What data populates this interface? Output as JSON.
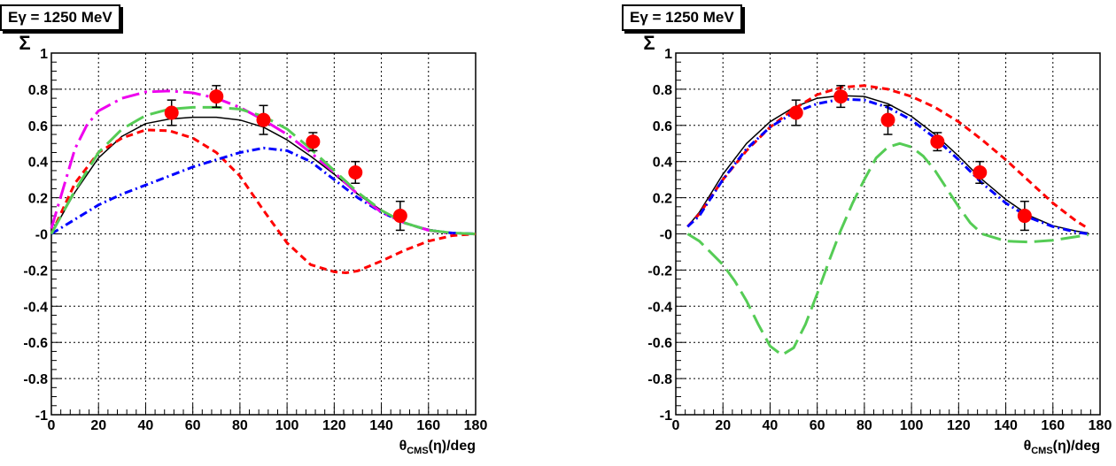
{
  "chart_data": [
    {
      "type": "line",
      "title": "Eγ = 1250 MeV",
      "ylabel": "Σ",
      "xlabel": "θ_CMS(η)/deg",
      "xlabel_parts": {
        "main": "θ",
        "sub": "CMS",
        "rest": "(η)/deg"
      },
      "xlim": [
        0,
        180
      ],
      "ylim": [
        -1,
        1
      ],
      "xticks": [
        0,
        20,
        40,
        60,
        80,
        100,
        120,
        140,
        160,
        180
      ],
      "yticks": [
        -1,
        -0.8,
        -0.6,
        -0.4,
        -0.2,
        0,
        0.2,
        0.4,
        0.6,
        0.8,
        1
      ],
      "ytick_labels": [
        "-1",
        "-0.8",
        "-0.6",
        "-0.4",
        "-0.2",
        "-0",
        "0.2",
        "0.4",
        "0.6",
        "0.8",
        "1"
      ],
      "grid": true,
      "data_points": [
        {
          "x": 51,
          "y": 0.67,
          "err": 0.07
        },
        {
          "x": 70,
          "y": 0.76,
          "err": 0.06
        },
        {
          "x": 90,
          "y": 0.63,
          "err": 0.08
        },
        {
          "x": 111,
          "y": 0.51,
          "err": 0.05
        },
        {
          "x": 129,
          "y": 0.34,
          "err": 0.06
        },
        {
          "x": 148,
          "y": 0.1,
          "err": 0.08
        }
      ],
      "series": [
        {
          "color": "#000000",
          "style": "solid",
          "x": [
            0,
            10,
            20,
            30,
            40,
            50,
            60,
            70,
            80,
            90,
            100,
            110,
            120,
            130,
            140,
            150,
            160,
            170,
            180
          ],
          "y": [
            0,
            0.23,
            0.42,
            0.54,
            0.61,
            0.635,
            0.645,
            0.645,
            0.63,
            0.59,
            0.52,
            0.43,
            0.33,
            0.22,
            0.13,
            0.06,
            0.025,
            0.005,
            0
          ]
        },
        {
          "color": "#ff0000",
          "style": "dashed",
          "x": [
            0,
            10,
            20,
            30,
            40,
            50,
            60,
            70,
            80,
            90,
            100,
            110,
            120,
            125,
            130,
            140,
            150,
            160,
            170,
            180
          ],
          "y": [
            0,
            0.28,
            0.45,
            0.53,
            0.575,
            0.57,
            0.53,
            0.45,
            0.32,
            0.13,
            -0.05,
            -0.17,
            -0.21,
            -0.215,
            -0.205,
            -0.15,
            -0.09,
            -0.04,
            -0.01,
            0
          ]
        },
        {
          "color": "#0000ff",
          "style": "dashdot",
          "x": [
            0,
            10,
            20,
            30,
            40,
            50,
            60,
            70,
            80,
            90,
            100,
            110,
            120,
            130,
            140,
            150,
            160,
            170,
            180
          ],
          "y": [
            0,
            0.08,
            0.16,
            0.22,
            0.27,
            0.32,
            0.37,
            0.41,
            0.45,
            0.475,
            0.46,
            0.4,
            0.3,
            0.2,
            0.12,
            0.06,
            0.02,
            0.005,
            0
          ]
        },
        {
          "color": "#ee00ee",
          "style": "longdashdot",
          "x": [
            0,
            5,
            10,
            15,
            20,
            30,
            40,
            50,
            60,
            70,
            80,
            90,
            100,
            110,
            120,
            130,
            140,
            150,
            160,
            170
          ],
          "y": [
            0.03,
            0.25,
            0.47,
            0.6,
            0.68,
            0.75,
            0.785,
            0.79,
            0.78,
            0.75,
            0.7,
            0.63,
            0.55,
            0.45,
            0.34,
            0.22,
            0.12,
            0.06,
            0.02,
            0
          ]
        },
        {
          "color": "#55cc55",
          "style": "longdash",
          "x": [
            0,
            10,
            20,
            30,
            40,
            50,
            60,
            70,
            80,
            90,
            100,
            110,
            120,
            130,
            140,
            150,
            160,
            170,
            180
          ],
          "y": [
            0,
            0.24,
            0.45,
            0.58,
            0.655,
            0.69,
            0.7,
            0.7,
            0.69,
            0.65,
            0.58,
            0.47,
            0.35,
            0.23,
            0.13,
            0.06,
            0.02,
            0.005,
            0
          ]
        }
      ]
    },
    {
      "type": "line",
      "title": "Eγ = 1250 MeV",
      "ylabel": "Σ",
      "xlabel": "θ_CMS(η)/deg",
      "xlabel_parts": {
        "main": "θ",
        "sub": "CMS",
        "rest": "(η)/deg"
      },
      "xlim": [
        0,
        180
      ],
      "ylim": [
        -1,
        1
      ],
      "xticks": [
        0,
        20,
        40,
        60,
        80,
        100,
        120,
        140,
        160,
        180
      ],
      "yticks": [
        -1,
        -0.8,
        -0.6,
        -0.4,
        -0.2,
        0,
        0.2,
        0.4,
        0.6,
        0.8,
        1
      ],
      "ytick_labels": [
        "-1",
        "-0.8",
        "-0.6",
        "-0.4",
        "-0.2",
        "-0",
        "0.2",
        "0.4",
        "0.6",
        "0.8",
        "1"
      ],
      "grid": true,
      "data_points": [
        {
          "x": 51,
          "y": 0.67,
          "err": 0.07
        },
        {
          "x": 70,
          "y": 0.76,
          "err": 0.06
        },
        {
          "x": 90,
          "y": 0.63,
          "err": 0.08
        },
        {
          "x": 111,
          "y": 0.51,
          "err": 0.05
        },
        {
          "x": 129,
          "y": 0.34,
          "err": 0.06
        },
        {
          "x": 148,
          "y": 0.1,
          "err": 0.08
        }
      ],
      "series": [
        {
          "color": "#000000",
          "style": "solid",
          "x": [
            5,
            10,
            20,
            30,
            40,
            50,
            60,
            70,
            80,
            90,
            100,
            110,
            120,
            130,
            140,
            150,
            160,
            170,
            175
          ],
          "y": [
            0.04,
            0.12,
            0.33,
            0.5,
            0.62,
            0.7,
            0.75,
            0.765,
            0.76,
            0.72,
            0.65,
            0.55,
            0.43,
            0.3,
            0.19,
            0.1,
            0.045,
            0.015,
            0.005
          ]
        },
        {
          "color": "#ff0000",
          "style": "dashed",
          "x": [
            5,
            10,
            20,
            30,
            40,
            50,
            60,
            70,
            80,
            90,
            100,
            110,
            120,
            130,
            140,
            150,
            160,
            170,
            175
          ],
          "y": [
            0.04,
            0.11,
            0.3,
            0.46,
            0.59,
            0.69,
            0.77,
            0.81,
            0.82,
            0.8,
            0.76,
            0.7,
            0.62,
            0.52,
            0.41,
            0.29,
            0.17,
            0.07,
            0.03
          ]
        },
        {
          "color": "#0000ff",
          "style": "dashdot",
          "x": [
            5,
            10,
            20,
            30,
            40,
            50,
            60,
            70,
            80,
            90,
            100,
            110,
            120,
            130,
            140,
            150,
            160,
            170,
            175
          ],
          "y": [
            0.04,
            0.1,
            0.3,
            0.47,
            0.59,
            0.67,
            0.72,
            0.745,
            0.74,
            0.7,
            0.63,
            0.53,
            0.41,
            0.28,
            0.17,
            0.09,
            0.04,
            0.01,
            0
          ]
        },
        {
          "color": "#55cc55",
          "style": "longdash",
          "x": [
            5,
            10,
            20,
            25,
            30,
            35,
            40,
            45,
            50,
            55,
            60,
            65,
            70,
            75,
            80,
            85,
            90,
            95,
            100,
            105,
            110,
            115,
            120,
            125,
            130,
            140,
            150,
            160,
            170,
            175
          ],
          "y": [
            0,
            -0.04,
            -0.17,
            -0.26,
            -0.37,
            -0.5,
            -0.62,
            -0.67,
            -0.63,
            -0.5,
            -0.33,
            -0.15,
            0.02,
            0.17,
            0.3,
            0.42,
            0.48,
            0.5,
            0.48,
            0.43,
            0.35,
            0.25,
            0.15,
            0.06,
            0,
            -0.04,
            -0.045,
            -0.035,
            -0.015,
            -0.005
          ]
        }
      ]
    }
  ]
}
